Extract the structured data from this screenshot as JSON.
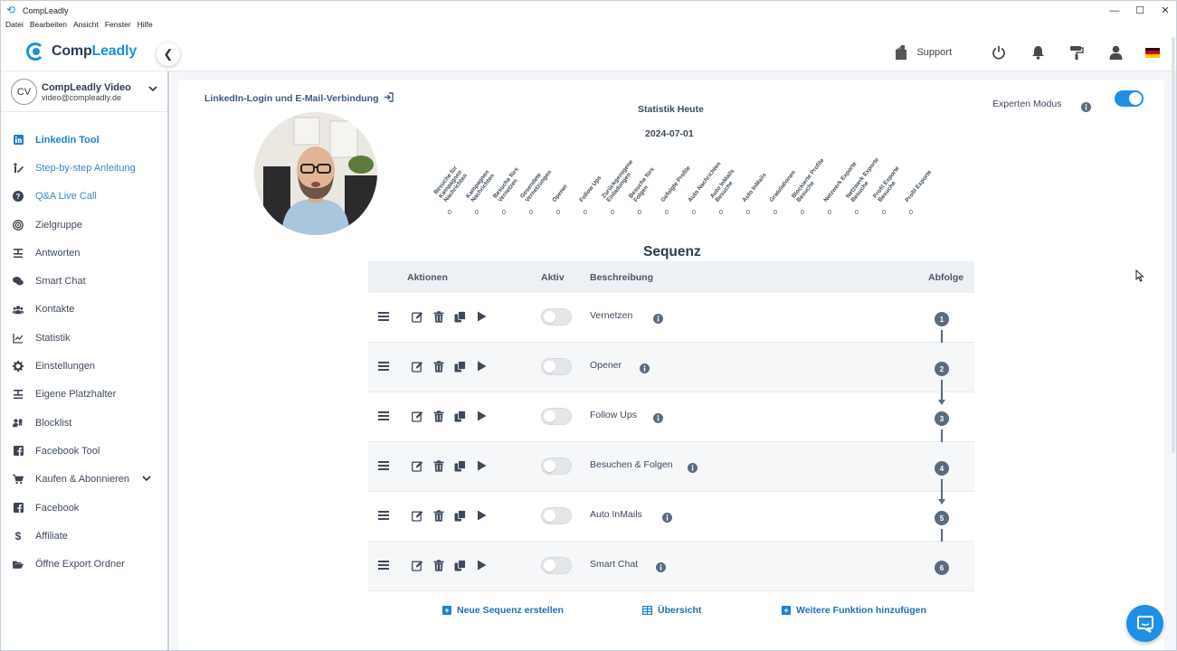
{
  "window": {
    "title": "CompLeadly",
    "controls": [
      "—",
      "☐",
      "✕"
    ]
  },
  "menubar": [
    "Datei",
    "Bearbeiten",
    "Ansicht",
    "Fenster",
    "Hilfe"
  ],
  "header": {
    "logo_part1": "Comp",
    "logo_part2": "Leadly",
    "support_label": "Support",
    "icons": [
      "support-icon",
      "power-icon",
      "bell-icon",
      "paint-roller-icon",
      "user-icon",
      "german-flag-icon"
    ]
  },
  "account": {
    "initials": "CV",
    "name": "CompLeadly Video",
    "email": "video@compleadly.de"
  },
  "sidebar": {
    "items": [
      {
        "label": "Linkedin Tool",
        "icon": "linkedin-icon",
        "state": "active"
      },
      {
        "label": "Step-by-step Anleitung",
        "icon": "person-steps-icon",
        "state": "link"
      },
      {
        "label": "Q&A Live Call",
        "icon": "question-circle-icon",
        "state": "link"
      },
      {
        "label": "Zielgruppe",
        "icon": "target-icon",
        "state": ""
      },
      {
        "label": "Antworten",
        "icon": "reply-icon",
        "state": ""
      },
      {
        "label": "Smart Chat",
        "icon": "comments-icon",
        "state": ""
      },
      {
        "label": "Kontakte",
        "icon": "users-icon",
        "state": ""
      },
      {
        "label": "Statistik",
        "icon": "chart-line-icon",
        "state": ""
      },
      {
        "label": "Einstellungen",
        "icon": "gear-icon",
        "state": ""
      },
      {
        "label": "Eigene Platzhalter",
        "icon": "placeholder-icon",
        "state": ""
      },
      {
        "label": "Blocklist",
        "icon": "users-block-icon",
        "state": ""
      },
      {
        "label": "Facebook Tool",
        "icon": "facebook-icon",
        "state": ""
      },
      {
        "label": "Kaufen & Abonnieren",
        "icon": "cart-icon",
        "state": ""
      },
      {
        "label": "Facebook",
        "icon": "facebook-icon",
        "state": ""
      },
      {
        "label": "Affiliate",
        "icon": "dollar-icon",
        "state": ""
      },
      {
        "label": "Öffne Export Ordner",
        "icon": "folder-open-icon",
        "state": ""
      }
    ]
  },
  "main": {
    "login_link": "LinkedIn-Login und E-Mail-Verbindung",
    "stat_title": "Statistik Heute",
    "stat_date": "2024-07-01",
    "expert_label": "Experten Modus",
    "expert_on": true,
    "stats": [
      {
        "label": "Besuche für\nKampagnen\nNachrichten",
        "value": "0"
      },
      {
        "label": "Kampagnen\nNachrichten",
        "value": "0"
      },
      {
        "label": "Besuche fürs\nVernetzen",
        "value": "0"
      },
      {
        "label": "Gesendete\nVernetzungen",
        "value": "0"
      },
      {
        "label": "Opener",
        "value": "0"
      },
      {
        "label": "Follow Ups",
        "value": "0"
      },
      {
        "label": "Zurückgezogene\nEinladungen",
        "value": "0"
      },
      {
        "label": "Besuche fürs\nFolgen",
        "value": "0"
      },
      {
        "label": "Gefolgte Profile",
        "value": "0"
      },
      {
        "label": "Auto Nachrichten",
        "value": "0"
      },
      {
        "label": "Auto InMails\nBesuche",
        "value": "0"
      },
      {
        "label": "Auto InMails",
        "value": "0"
      },
      {
        "label": "Gratulationen",
        "value": "0"
      },
      {
        "label": "Blockierte Profile\nBesuche",
        "value": "0"
      },
      {
        "label": "Netzwerk Exporte",
        "value": "0"
      },
      {
        "label": "Netzwerk Exporte\nBesuche",
        "value": "0"
      },
      {
        "label": "Profil Exporte\nBesuche",
        "value": "0"
      },
      {
        "label": "Profil Exporte",
        "value": "0"
      }
    ],
    "sequence": {
      "title": "Sequenz",
      "headers": {
        "actions": "Aktionen",
        "active": "Aktiv",
        "description": "Beschreibung",
        "order": "Abfolge"
      },
      "rows": [
        {
          "description": "Vernetzen",
          "step": "1",
          "active": false
        },
        {
          "description": "Opener",
          "step": "2",
          "active": false
        },
        {
          "description": "Follow Ups",
          "step": "3",
          "active": false
        },
        {
          "description": "Besuchen & Folgen",
          "step": "4",
          "active": false
        },
        {
          "description": "Auto InMails",
          "step": "5",
          "active": false
        },
        {
          "description": "Smart Chat",
          "step": "6",
          "active": false
        }
      ]
    },
    "footer": {
      "new_sequence": "Neue Sequenz erstellen",
      "overview": "Übersicht",
      "add_function": "Weitere Funktion hinzufügen"
    }
  },
  "colors": {
    "accent": "#1e8fe6",
    "text": "#3d4a5c",
    "step": "#5a6b80"
  }
}
